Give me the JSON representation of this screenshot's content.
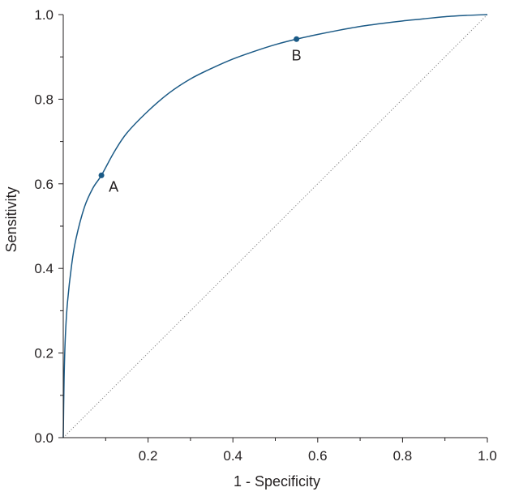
{
  "chart_data": {
    "type": "line",
    "title": "",
    "xlabel": "1 - Specificity",
    "ylabel": "Sensitivity",
    "xlim": [
      0,
      1
    ],
    "ylim": [
      0,
      1
    ],
    "grid": false,
    "legend": "none",
    "x_ticks": [
      {
        "value": 0.2,
        "label": "0.2"
      },
      {
        "value": 0.4,
        "label": "0.4"
      },
      {
        "value": 0.6,
        "label": "0.6"
      },
      {
        "value": 0.8,
        "label": "0.8"
      },
      {
        "value": 1.0,
        "label": "1.0"
      }
    ],
    "x_minor_ticks": [
      0.1,
      0.3,
      0.5,
      0.7,
      0.9
    ],
    "y_ticks": [
      {
        "value": 0.0,
        "label": "0.0"
      },
      {
        "value": 0.2,
        "label": "0.2"
      },
      {
        "value": 0.4,
        "label": "0.4"
      },
      {
        "value": 0.6,
        "label": "0.6"
      },
      {
        "value": 0.8,
        "label": "0.8"
      },
      {
        "value": 1.0,
        "label": "1.0"
      }
    ],
    "y_minor_ticks": [
      0.1,
      0.3,
      0.5,
      0.7,
      0.9
    ],
    "series": [
      {
        "x": [
          0,
          0.002,
          0.005,
          0.01,
          0.02,
          0.03,
          0.05,
          0.07,
          0.09,
          0.12,
          0.15,
          0.2,
          0.25,
          0.3,
          0.35,
          0.4,
          0.45,
          0.5,
          0.55,
          0.6,
          0.65,
          0.7,
          0.75,
          0.8,
          0.85,
          0.9,
          0.95,
          1.0
        ],
        "y": [
          0,
          0.14,
          0.24,
          0.32,
          0.41,
          0.47,
          0.545,
          0.59,
          0.62,
          0.675,
          0.72,
          0.772,
          0.815,
          0.848,
          0.873,
          0.895,
          0.913,
          0.929,
          0.942,
          0.953,
          0.963,
          0.972,
          0.979,
          0.985,
          0.99,
          0.995,
          0.998,
          1.0
        ],
        "color": "#1b5a86"
      }
    ],
    "reference_line": {
      "x": [
        0,
        1
      ],
      "y": [
        0,
        1
      ],
      "style": "dotted",
      "color": "#7f7f7f"
    },
    "points": [
      {
        "label": "A",
        "x": 0.09,
        "y": 0.62,
        "color": "#1b5a86"
      },
      {
        "label": "B",
        "x": 0.55,
        "y": 0.942,
        "color": "#1b5a86"
      }
    ]
  }
}
